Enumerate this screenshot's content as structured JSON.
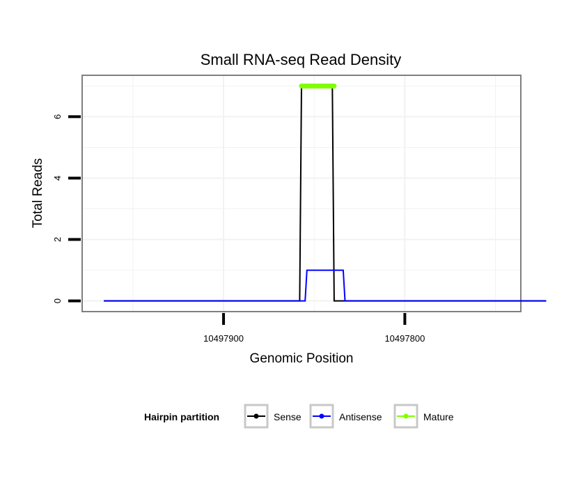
{
  "chart_data": {
    "type": "line",
    "title": "Small RNA-seq Read Density",
    "xlabel": "Genomic Position",
    "ylabel": "Total Reads",
    "x_reversed": true,
    "xlim": [
      10497978,
      10497736
    ],
    "ylim": [
      -0.35,
      7.35
    ],
    "x_ticks": [
      10497900,
      10497800
    ],
    "x_tick_labels": [
      "10497900",
      "10497800"
    ],
    "y_ticks": [
      0,
      2,
      4,
      6
    ],
    "y_tick_labels": [
      "0",
      "2",
      "4",
      "6"
    ],
    "grid": true,
    "legend": {
      "title": "Hairpin partition",
      "position": "bottom",
      "entries": [
        "Sense",
        "Antisense",
        "Mature"
      ]
    },
    "series": [
      {
        "name": "Sense",
        "color": "#000000",
        "points": [
          [
            10497966,
            0
          ],
          [
            10497875,
            0
          ],
          [
            10497858,
            0
          ],
          [
            10497857,
            7
          ],
          [
            10497840,
            7
          ],
          [
            10497839,
            0
          ],
          [
            10497822,
            0
          ],
          [
            10497722,
            0
          ]
        ]
      },
      {
        "name": "Antisense",
        "color": "#0000ff",
        "points": [
          [
            10497966,
            0
          ],
          [
            10497855,
            0
          ],
          [
            10497854,
            1
          ],
          [
            10497834,
            1
          ],
          [
            10497833,
            0
          ],
          [
            10497722,
            0
          ]
        ]
      },
      {
        "name": "Mature",
        "color": "#7fff00",
        "points": [
          [
            10497857,
            7
          ],
          [
            10497839,
            7
          ]
        ]
      }
    ]
  }
}
